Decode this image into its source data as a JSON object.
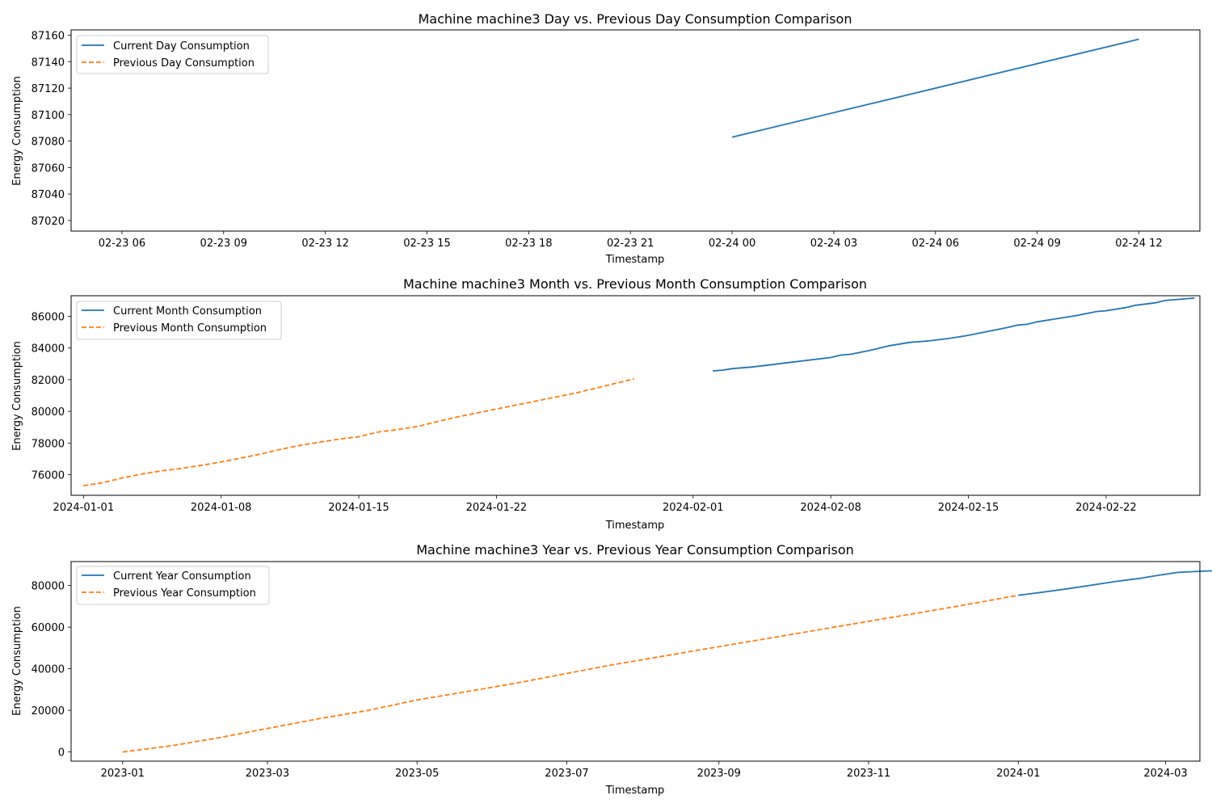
{
  "colors": {
    "current": "#1f77b4",
    "previous": "#ff7f0e",
    "frame": "#000000",
    "legend_border": "#cccccc"
  },
  "chart_data": [
    {
      "type": "line",
      "title": "Machine machine3 Day vs. Previous Day Consumption Comparison",
      "xlabel": "Timestamp",
      "ylabel": "Energy Consumption",
      "x_unit": "hours",
      "xlim": [
        4.5,
        37.8
      ],
      "ylim": [
        87012,
        87164
      ],
      "xticks": [
        {
          "v": 6,
          "label": "02-23 06"
        },
        {
          "v": 9,
          "label": "02-23 09"
        },
        {
          "v": 12,
          "label": "02-23 12"
        },
        {
          "v": 15,
          "label": "02-23 15"
        },
        {
          "v": 18,
          "label": "02-23 18"
        },
        {
          "v": 21,
          "label": "02-23 21"
        },
        {
          "v": 24,
          "label": "02-24 00"
        },
        {
          "v": 27,
          "label": "02-24 03"
        },
        {
          "v": 30,
          "label": "02-24 06"
        },
        {
          "v": 33,
          "label": "02-24 09"
        },
        {
          "v": 36,
          "label": "02-24 12"
        }
      ],
      "yticks": [
        {
          "v": 87020,
          "label": "87020"
        },
        {
          "v": 87040,
          "label": "87040"
        },
        {
          "v": 87060,
          "label": "87060"
        },
        {
          "v": 87080,
          "label": "87080"
        },
        {
          "v": 87100,
          "label": "87100"
        },
        {
          "v": 87120,
          "label": "87120"
        },
        {
          "v": 87140,
          "label": "87140"
        },
        {
          "v": 87160,
          "label": "87160"
        }
      ],
      "legend_position": "upper-left",
      "series": [
        {
          "name": "Current Day Consumption",
          "style": "solid",
          "color_key": "current",
          "points": [
            [
              24.0,
              87083
            ],
            [
              36.0,
              87157
            ]
          ]
        },
        {
          "name": "Previous Day Consumption",
          "style": "dashed",
          "color_key": "previous",
          "points": []
        }
      ]
    },
    {
      "type": "line",
      "title": "Machine machine3 Month vs. Previous Month Consumption Comparison",
      "xlabel": "Timestamp",
      "ylabel": "Energy Consumption",
      "x_unit": "days",
      "xlim": [
        -0.63,
        56.77
      ],
      "ylim": [
        74700,
        87300
      ],
      "xticks": [
        {
          "v": 0,
          "label": "2024-01-01"
        },
        {
          "v": 7,
          "label": "2024-01-08"
        },
        {
          "v": 14,
          "label": "2024-01-15"
        },
        {
          "v": 21,
          "label": "2024-01-22"
        },
        {
          "v": 31,
          "label": "2024-02-01"
        },
        {
          "v": 38,
          "label": "2024-02-08"
        },
        {
          "v": 45,
          "label": "2024-02-15"
        },
        {
          "v": 52,
          "label": "2024-02-22"
        }
      ],
      "yticks": [
        {
          "v": 76000,
          "label": "76000"
        },
        {
          "v": 78000,
          "label": "78000"
        },
        {
          "v": 80000,
          "label": "80000"
        },
        {
          "v": 82000,
          "label": "82000"
        },
        {
          "v": 84000,
          "label": "84000"
        },
        {
          "v": 86000,
          "label": "86000"
        }
      ],
      "legend_position": "upper-left",
      "series": [
        {
          "name": "Current Month Consumption",
          "style": "solid",
          "color_key": "current",
          "points": [
            [
              32.0,
              82550
            ],
            [
              32.5,
              82600
            ],
            [
              33.0,
              82700
            ],
            [
              34.0,
              82800
            ],
            [
              35.0,
              82950
            ],
            [
              36.0,
              83100
            ],
            [
              37.0,
              83250
            ],
            [
              38.0,
              83400
            ],
            [
              38.5,
              83550
            ],
            [
              39.0,
              83600
            ],
            [
              40.0,
              83850
            ],
            [
              41.0,
              84150
            ],
            [
              42.0,
              84350
            ],
            [
              43.0,
              84450
            ],
            [
              44.0,
              84600
            ],
            [
              44.5,
              84700
            ],
            [
              45.0,
              84800
            ],
            [
              46.0,
              85050
            ],
            [
              47.0,
              85300
            ],
            [
              47.5,
              85450
            ],
            [
              48.0,
              85500
            ],
            [
              48.5,
              85650
            ],
            [
              49.5,
              85850
            ],
            [
              50.5,
              86050
            ],
            [
              51.5,
              86300
            ],
            [
              52.0,
              86350
            ],
            [
              53.0,
              86550
            ],
            [
              53.5,
              86700
            ],
            [
              54.5,
              86850
            ],
            [
              55.0,
              87000
            ],
            [
              55.5,
              87050
            ],
            [
              56.0,
              87100
            ],
            [
              56.5,
              87157
            ]
          ]
        },
        {
          "name": "Previous Month Consumption",
          "style": "dashed",
          "color_key": "previous",
          "points": [
            [
              0.0,
              75300
            ],
            [
              1.0,
              75500
            ],
            [
              2.0,
              75800
            ],
            [
              3.0,
              76050
            ],
            [
              4.0,
              76250
            ],
            [
              5.0,
              76400
            ],
            [
              6.0,
              76600
            ],
            [
              7.0,
              76800
            ],
            [
              8.0,
              77050
            ],
            [
              9.0,
              77300
            ],
            [
              10.0,
              77600
            ],
            [
              11.0,
              77850
            ],
            [
              12.0,
              78050
            ],
            [
              13.0,
              78250
            ],
            [
              14.0,
              78400
            ],
            [
              15.0,
              78700
            ],
            [
              16.0,
              78850
            ],
            [
              17.0,
              79050
            ],
            [
              18.0,
              79350
            ],
            [
              19.0,
              79650
            ],
            [
              20.0,
              79900
            ],
            [
              21.0,
              80150
            ],
            [
              22.0,
              80400
            ],
            [
              23.0,
              80650
            ],
            [
              24.0,
              80900
            ],
            [
              25.0,
              81150
            ],
            [
              26.0,
              81450
            ],
            [
              27.0,
              81750
            ],
            [
              28.0,
              82050
            ]
          ]
        }
      ]
    },
    {
      "type": "line",
      "title": "Machine machine3 Year vs. Previous Year Consumption Comparison",
      "xlabel": "Timestamp",
      "ylabel": "Energy Consumption",
      "x_unit": "days",
      "xlim": [
        -21,
        439
      ],
      "ylim": [
        -4400,
        91500
      ],
      "xticks": [
        {
          "v": 0,
          "label": "2023-01"
        },
        {
          "v": 59,
          "label": "2023-03"
        },
        {
          "v": 120,
          "label": "2023-05"
        },
        {
          "v": 181,
          "label": "2023-07"
        },
        {
          "v": 243,
          "label": "2023-09"
        },
        {
          "v": 304,
          "label": "2023-11"
        },
        {
          "v": 365,
          "label": "2024-01"
        },
        {
          "v": 425,
          "label": "2024-03"
        }
      ],
      "yticks": [
        {
          "v": 0,
          "label": "0"
        },
        {
          "v": 20000,
          "label": "20000"
        },
        {
          "v": 40000,
          "label": "40000"
        },
        {
          "v": 60000,
          "label": "60000"
        },
        {
          "v": 80000,
          "label": "80000"
        }
      ],
      "legend_position": "upper-left",
      "series": [
        {
          "name": "Current Year Consumption",
          "style": "solid",
          "color_key": "current",
          "points": [
            [
              365,
              75300
            ],
            [
              375,
              76800
            ],
            [
              385,
              78400
            ],
            [
              395,
              80200
            ],
            [
              405,
              82000
            ],
            [
              415,
              83500
            ],
            [
              420,
              84500
            ],
            [
              430,
              86300
            ],
            [
              445,
              87157
            ]
          ]
        },
        {
          "name": "Previous Year Consumption",
          "style": "dashed",
          "color_key": "previous",
          "points": [
            [
              0,
              0
            ],
            [
              20,
              3000
            ],
            [
              40,
              7000
            ],
            [
              60,
              11500
            ],
            [
              80,
              16000
            ],
            [
              100,
              20000
            ],
            [
              120,
              25000
            ],
            [
              140,
              29000
            ],
            [
              160,
              33000
            ],
            [
              180,
              37500
            ],
            [
              200,
              42000
            ],
            [
              220,
              46000
            ],
            [
              240,
              50000
            ],
            [
              260,
              54000
            ],
            [
              280,
              58000
            ],
            [
              300,
              62000
            ],
            [
              320,
              66000
            ],
            [
              340,
              70000
            ],
            [
              365,
              75300
            ]
          ]
        }
      ]
    }
  ]
}
